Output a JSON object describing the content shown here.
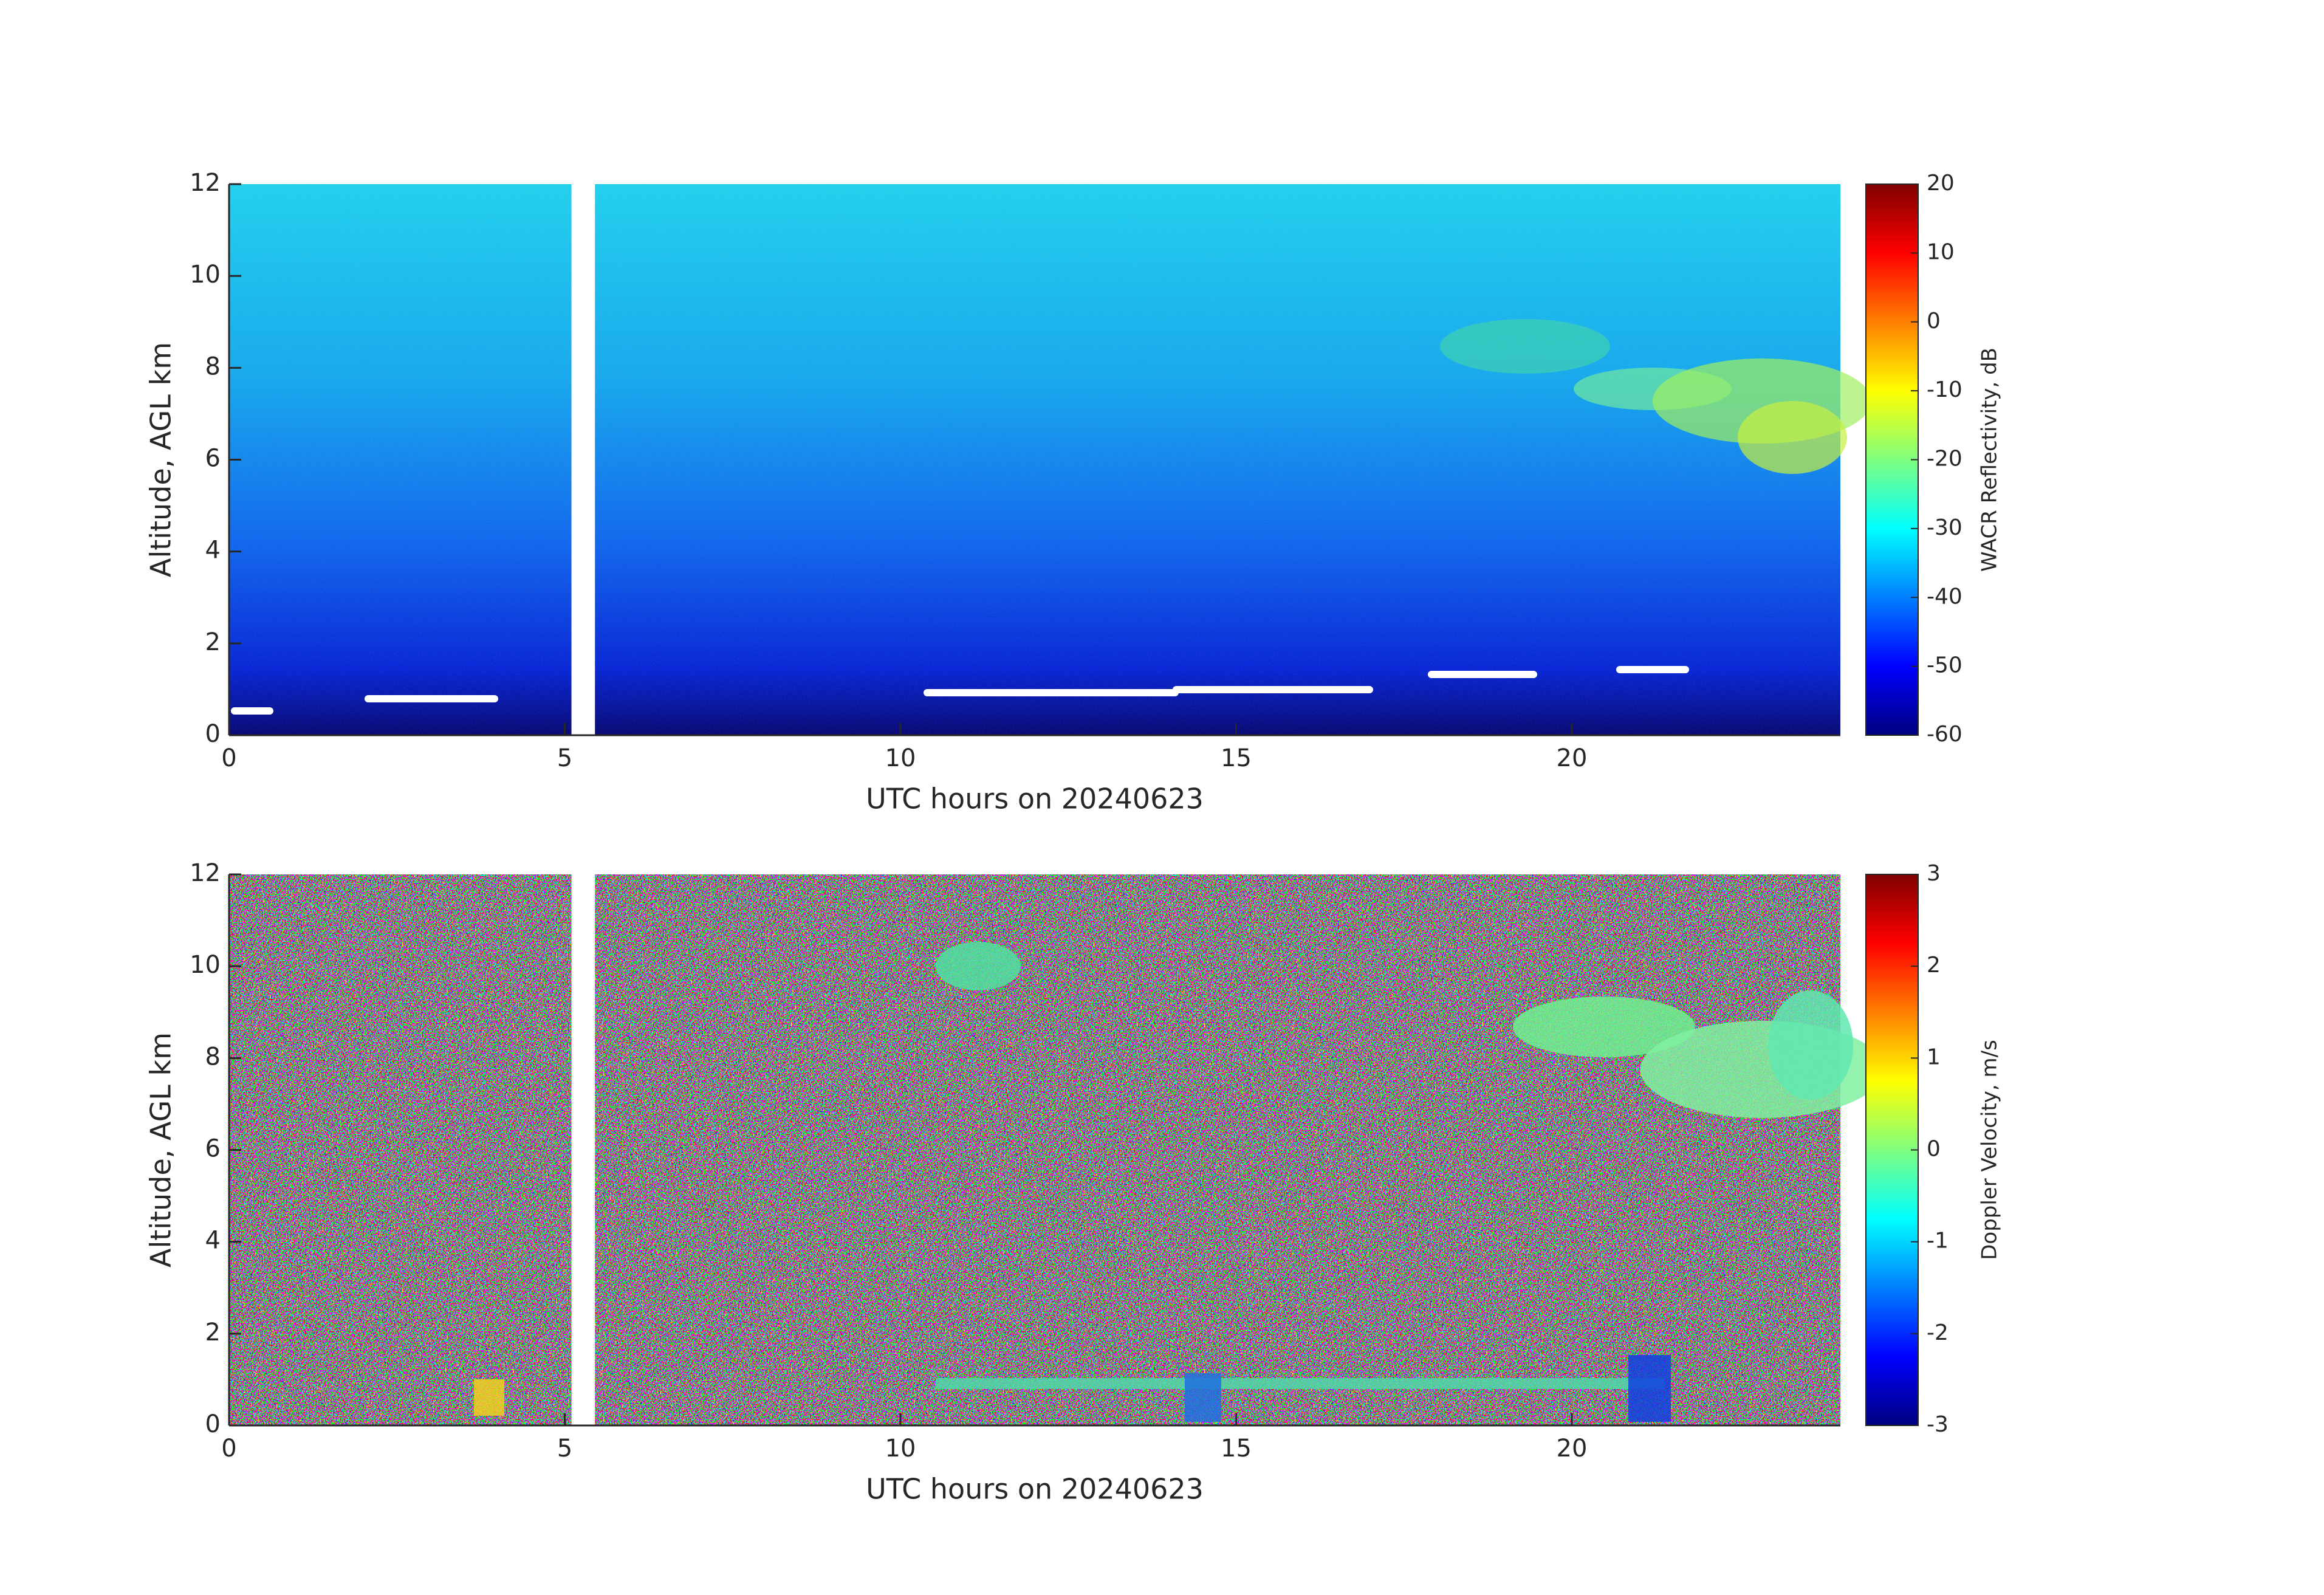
{
  "chart_data": [
    {
      "type": "heatmap",
      "xlabel": "UTC hours on 20240623",
      "ylabel": "Altitude, AGL km",
      "xlim": [
        0,
        24
      ],
      "xticks": [
        0,
        5,
        10,
        15,
        20
      ],
      "ylim": [
        0,
        12
      ],
      "yticks": [
        0,
        2,
        4,
        6,
        8,
        10,
        12
      ],
      "gap": [
        5.1,
        5.45
      ],
      "field": "reflectivity",
      "colorbar": {
        "label": "WACR Reflectivity, dB",
        "colormap": "jet",
        "lim": [
          -60,
          20
        ],
        "ticks": [
          -60,
          -50,
          -40,
          -30,
          -20,
          -10,
          0,
          10,
          20
        ]
      }
    },
    {
      "type": "heatmap",
      "xlabel": "UTC hours on 20240623",
      "ylabel": "Altitude, AGL km",
      "xlim": [
        0,
        24
      ],
      "xticks": [
        0,
        5,
        10,
        15,
        20
      ],
      "ylim": [
        0,
        12
      ],
      "yticks": [
        0,
        2,
        4,
        6,
        8,
        10,
        12
      ],
      "gap": [
        5.1,
        5.45
      ],
      "field": "velocity",
      "colorbar": {
        "label": "Doppler Velocity, m/s",
        "colormap": "jet",
        "lim": [
          -3,
          3
        ],
        "ticks": [
          -3,
          -2,
          -1,
          0,
          1,
          2,
          3
        ]
      }
    }
  ]
}
